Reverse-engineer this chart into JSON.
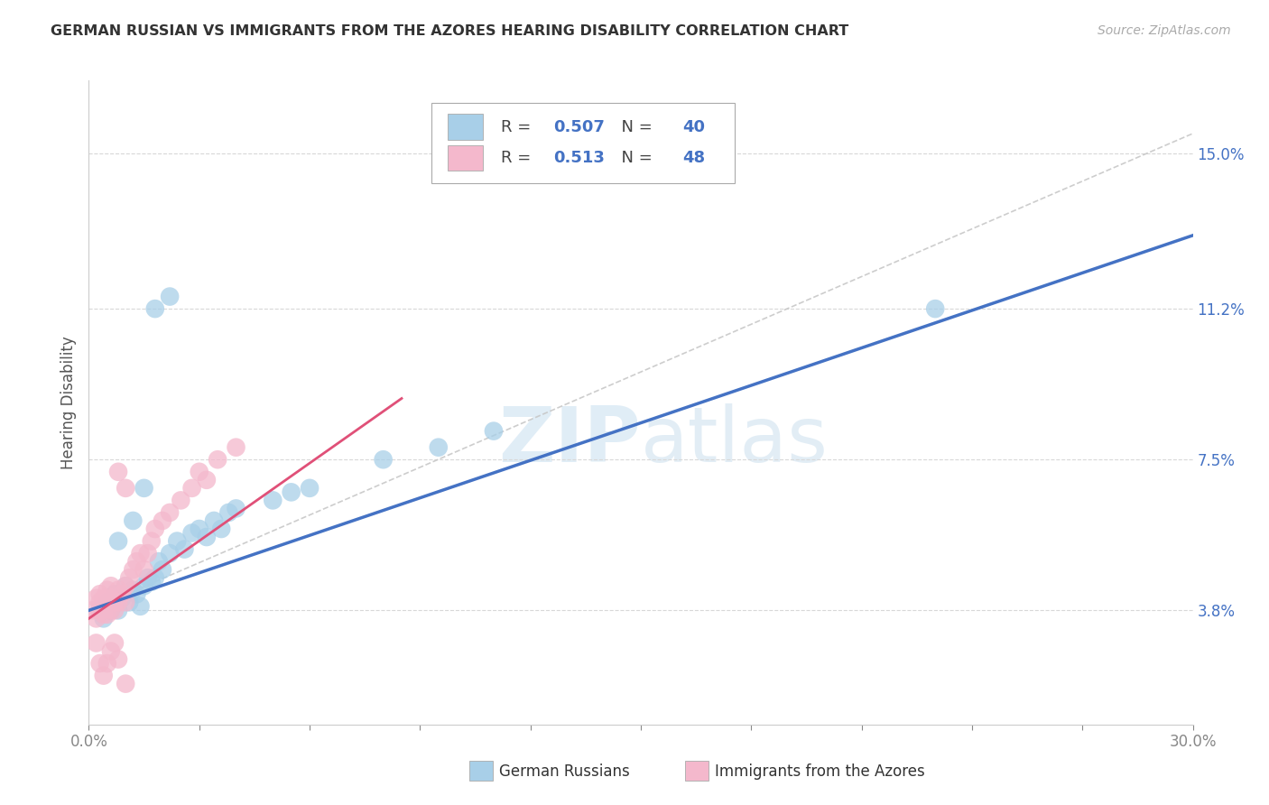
{
  "title": "GERMAN RUSSIAN VS IMMIGRANTS FROM THE AZORES HEARING DISABILITY CORRELATION CHART",
  "source": "Source: ZipAtlas.com",
  "ylabel": "Hearing Disability",
  "yticks": [
    "3.8%",
    "7.5%",
    "11.2%",
    "15.0%"
  ],
  "ytick_vals": [
    0.038,
    0.075,
    0.112,
    0.15
  ],
  "xmin": 0.0,
  "xmax": 0.3,
  "ymin": 0.01,
  "ymax": 0.168,
  "legend_label1": "German Russians",
  "legend_label2": "Immigrants from the Azores",
  "r1": "0.507",
  "n1": "40",
  "r2": "0.513",
  "n2": "48",
  "color_blue": "#a8cfe8",
  "color_pink": "#f4b8cc",
  "color_blue_text": "#4472c4",
  "line_blue": "#4472c4",
  "line_pink": "#e05078",
  "line_gray": "#c8c8c8",
  "watermark": "ZIPatlas",
  "scatter_blue": [
    [
      0.003,
      0.038
    ],
    [
      0.004,
      0.036
    ],
    [
      0.005,
      0.04
    ],
    [
      0.006,
      0.038
    ],
    [
      0.007,
      0.042
    ],
    [
      0.008,
      0.038
    ],
    [
      0.009,
      0.041
    ],
    [
      0.01,
      0.044
    ],
    [
      0.011,
      0.04
    ],
    [
      0.012,
      0.043
    ],
    [
      0.013,
      0.042
    ],
    [
      0.014,
      0.039
    ],
    [
      0.015,
      0.044
    ],
    [
      0.016,
      0.046
    ],
    [
      0.017,
      0.045
    ],
    [
      0.018,
      0.046
    ],
    [
      0.019,
      0.05
    ],
    [
      0.02,
      0.048
    ],
    [
      0.022,
      0.052
    ],
    [
      0.024,
      0.055
    ],
    [
      0.026,
      0.053
    ],
    [
      0.028,
      0.057
    ],
    [
      0.03,
      0.058
    ],
    [
      0.032,
      0.056
    ],
    [
      0.034,
      0.06
    ],
    [
      0.036,
      0.058
    ],
    [
      0.038,
      0.062
    ],
    [
      0.04,
      0.063
    ],
    [
      0.05,
      0.065
    ],
    [
      0.055,
      0.067
    ],
    [
      0.06,
      0.068
    ],
    [
      0.08,
      0.075
    ],
    [
      0.018,
      0.112
    ],
    [
      0.022,
      0.115
    ],
    [
      0.23,
      0.112
    ],
    [
      0.095,
      0.078
    ],
    [
      0.11,
      0.082
    ],
    [
      0.008,
      0.055
    ],
    [
      0.012,
      0.06
    ],
    [
      0.015,
      0.068
    ]
  ],
  "scatter_pink": [
    [
      0.001,
      0.038
    ],
    [
      0.002,
      0.036
    ],
    [
      0.002,
      0.041
    ],
    [
      0.003,
      0.038
    ],
    [
      0.003,
      0.042
    ],
    [
      0.003,
      0.04
    ],
    [
      0.004,
      0.038
    ],
    [
      0.004,
      0.041
    ],
    [
      0.004,
      0.037
    ],
    [
      0.005,
      0.04
    ],
    [
      0.005,
      0.037
    ],
    [
      0.005,
      0.043
    ],
    [
      0.006,
      0.041
    ],
    [
      0.006,
      0.038
    ],
    [
      0.006,
      0.044
    ],
    [
      0.007,
      0.04
    ],
    [
      0.007,
      0.038
    ],
    [
      0.008,
      0.043
    ],
    [
      0.008,
      0.04
    ],
    [
      0.009,
      0.042
    ],
    [
      0.01,
      0.044
    ],
    [
      0.01,
      0.04
    ],
    [
      0.011,
      0.046
    ],
    [
      0.012,
      0.048
    ],
    [
      0.013,
      0.05
    ],
    [
      0.014,
      0.052
    ],
    [
      0.015,
      0.048
    ],
    [
      0.016,
      0.052
    ],
    [
      0.017,
      0.055
    ],
    [
      0.018,
      0.058
    ],
    [
      0.02,
      0.06
    ],
    [
      0.022,
      0.062
    ],
    [
      0.025,
      0.065
    ],
    [
      0.028,
      0.068
    ],
    [
      0.03,
      0.072
    ],
    [
      0.032,
      0.07
    ],
    [
      0.035,
      0.075
    ],
    [
      0.04,
      0.078
    ],
    [
      0.002,
      0.03
    ],
    [
      0.003,
      0.025
    ],
    [
      0.004,
      0.022
    ],
    [
      0.005,
      0.025
    ],
    [
      0.006,
      0.028
    ],
    [
      0.007,
      0.03
    ],
    [
      0.008,
      0.026
    ],
    [
      0.01,
      0.02
    ],
    [
      0.008,
      0.072
    ],
    [
      0.01,
      0.068
    ]
  ]
}
